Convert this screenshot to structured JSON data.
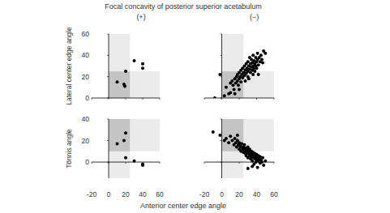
{
  "figure": {
    "title": "Focal concavity of posterior superior acetabulum",
    "x_label": "Anterior center edge angle"
  },
  "chart_data": [
    {
      "type": "scatter",
      "title": "(+)",
      "y_label": "Lateral center edge angle",
      "tick_labels": "y",
      "x": [
        10,
        18,
        20,
        19,
        30,
        40,
        40
      ],
      "values": [
        15,
        13,
        25,
        11,
        35,
        32,
        28
      ],
      "xlim": [
        -20,
        60
      ],
      "ylim": [
        0,
        60
      ],
      "xticks": [
        -20,
        0,
        20,
        40,
        60
      ],
      "yticks": [
        0,
        20,
        40,
        60
      ],
      "shaded_x": [
        0,
        25
      ],
      "shaded_y": [
        0,
        25
      ]
    },
    {
      "type": "scatter",
      "title": "(−)",
      "tick_labels": false,
      "x": [
        -8,
        3,
        -2,
        5,
        8,
        10,
        10,
        12,
        13,
        14,
        15,
        16,
        17,
        18,
        18,
        19,
        20,
        20,
        21,
        22,
        22,
        23,
        24,
        24,
        25,
        26,
        26,
        27,
        28,
        28,
        29,
        30,
        30,
        30,
        31,
        32,
        32,
        33,
        33,
        34,
        34,
        35,
        35,
        36,
        36,
        37,
        37,
        38,
        38,
        39,
        39,
        40,
        40,
        41,
        41,
        42,
        43,
        44,
        45,
        46,
        47,
        48,
        50,
        42,
        36,
        31,
        27,
        20,
        15
      ],
      "values": [
        0,
        2,
        22,
        10,
        4,
        14,
        5,
        16,
        12,
        8,
        18,
        14,
        20,
        16,
        22,
        12,
        18,
        24,
        20,
        15,
        26,
        22,
        19,
        28,
        24,
        21,
        30,
        26,
        23,
        32,
        28,
        20,
        25,
        34,
        30,
        27,
        38,
        24,
        32,
        29,
        36,
        26,
        33,
        30,
        40,
        28,
        35,
        32,
        25,
        38,
        30,
        34,
        28,
        36,
        42,
        31,
        38,
        34,
        40,
        36,
        33,
        44,
        42,
        22,
        22,
        18,
        16,
        8,
        4
      ],
      "xlim": [
        -20,
        60
      ],
      "ylim": [
        0,
        60
      ],
      "xticks": [
        -20,
        0,
        20,
        40,
        60
      ],
      "yticks": [
        0,
        20,
        40,
        60
      ],
      "shaded_x": [
        0,
        25
      ],
      "shaded_y": [
        0,
        25
      ]
    },
    {
      "type": "scatter",
      "y_label": "Tönnis angle",
      "tick_labels": true,
      "x": [
        10,
        18,
        20,
        20,
        30,
        40,
        40
      ],
      "values": [
        17,
        20,
        27,
        4,
        1,
        -2,
        -3
      ],
      "xlim": [
        -20,
        60
      ],
      "ylim": [
        -15,
        40
      ],
      "xticks": [
        -20,
        0,
        20,
        40,
        60
      ],
      "yticks": [
        0,
        20,
        40
      ],
      "shaded_x": [
        0,
        25
      ],
      "shaded_y": [
        10,
        40
      ]
    },
    {
      "type": "scatter",
      "tick_labels": "x",
      "x": [
        -10,
        -2,
        3,
        5,
        8,
        10,
        12,
        14,
        15,
        16,
        17,
        18,
        19,
        20,
        20,
        21,
        22,
        22,
        23,
        24,
        25,
        25,
        26,
        27,
        27,
        28,
        28,
        29,
        30,
        30,
        30,
        31,
        32,
        32,
        33,
        33,
        34,
        34,
        35,
        35,
        36,
        36,
        37,
        37,
        38,
        38,
        39,
        39,
        40,
        40,
        41,
        41,
        42,
        42,
        43,
        44,
        44,
        45,
        46,
        47,
        48,
        50,
        30,
        35,
        26,
        18
      ],
      "values": [
        28,
        25,
        20,
        22,
        18,
        24,
        20,
        16,
        22,
        18,
        14,
        20,
        16,
        12,
        18,
        15,
        10,
        14,
        17,
        12,
        9,
        14,
        11,
        8,
        13,
        10,
        6,
        12,
        8,
        4,
        14,
        10,
        6,
        12,
        8,
        3,
        10,
        5,
        7,
        1,
        9,
        4,
        6,
        -2,
        8,
        3,
        5,
        0,
        7,
        2,
        4,
        -5,
        6,
        1,
        3,
        5,
        -1,
        2,
        0,
        4,
        -3,
        1,
        -6,
        -4,
        16,
        25
      ],
      "xlim": [
        -20,
        60
      ],
      "ylim": [
        -15,
        40
      ],
      "xticks": [
        -20,
        0,
        20,
        40,
        60
      ],
      "yticks": [
        0,
        20,
        40
      ],
      "shaded_x": [
        0,
        25
      ],
      "shaded_y": [
        10,
        40
      ]
    }
  ]
}
